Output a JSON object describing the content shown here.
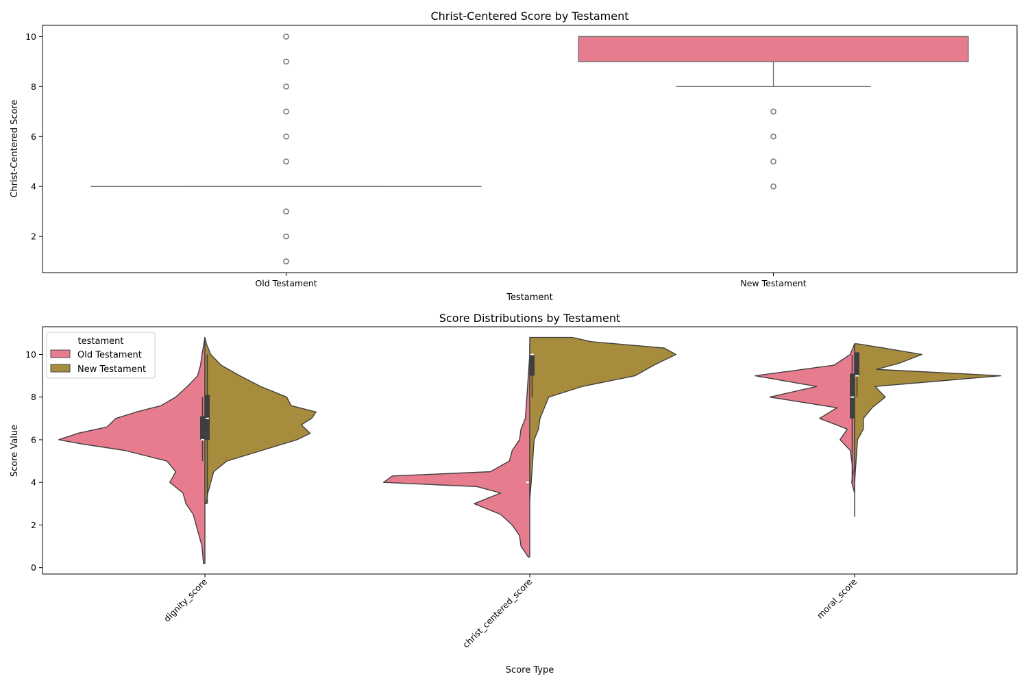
{
  "chart_data": [
    {
      "type": "box",
      "title": "Christ-Centered Score by Testament",
      "xlabel": "Testament",
      "ylabel": "Christ-Centered Score",
      "ylim": [
        0.55,
        10.45
      ],
      "yticks": [
        2,
        4,
        6,
        8,
        10
      ],
      "categories": [
        "Old Testament",
        "New Testament"
      ],
      "color": "#e67c8d",
      "boxes": [
        {
          "category": "Old Testament",
          "q1": 4,
          "median": 4,
          "q3": 4,
          "whisker_low": 4,
          "whisker_high": 4,
          "outliers": [
            1,
            2,
            3,
            5,
            6,
            7,
            8,
            9,
            10
          ]
        },
        {
          "category": "New Testament",
          "q1": 9,
          "median": 10,
          "q3": 10,
          "whisker_low": 8,
          "whisker_high": 10,
          "outliers": [
            4,
            5,
            6,
            7
          ]
        }
      ]
    },
    {
      "type": "violin",
      "title": "Score Distributions by Testament",
      "xlabel": "Score Type",
      "ylabel": "Score Value",
      "ylim": [
        -0.3,
        11.3
      ],
      "yticks": [
        0,
        2,
        4,
        6,
        8,
        10
      ],
      "categories": [
        "dignity_score",
        "christ_centered_score",
        "moral_score"
      ],
      "legend": {
        "title": "testament",
        "position": "upper-left"
      },
      "series": [
        {
          "name": "Old Testament",
          "color": "#e67c8d",
          "side": "left"
        },
        {
          "name": "New Testament",
          "color": "#a88c3d",
          "side": "right"
        }
      ],
      "violins": [
        {
          "category": "dignity_score",
          "old": {
            "range": [
              0.2,
              10.8
            ],
            "density": [
              [
                0.2,
                0.01
              ],
              [
                1,
                0.02
              ],
              [
                1.5,
                0.04
              ],
              [
                2,
                0.06
              ],
              [
                2.5,
                0.08
              ],
              [
                3,
                0.13
              ],
              [
                3.5,
                0.15
              ],
              [
                4,
                0.24
              ],
              [
                4.5,
                0.2
              ],
              [
                5,
                0.26
              ],
              [
                5.5,
                0.55
              ],
              [
                5.8,
                0.84
              ],
              [
                6,
                1.0
              ],
              [
                6.3,
                0.87
              ],
              [
                6.6,
                0.67
              ],
              [
                7,
                0.61
              ],
              [
                7.3,
                0.47
              ],
              [
                7.6,
                0.3
              ],
              [
                8,
                0.2
              ],
              [
                8.5,
                0.12
              ],
              [
                9,
                0.05
              ],
              [
                9.5,
                0.03
              ],
              [
                10,
                0.02
              ],
              [
                10.8,
                0.0
              ]
            ],
            "box": [
              6,
              6,
              7.1
            ],
            "whisker": [
              5,
              8
            ]
          },
          "new": {
            "range": [
              3,
              10.8
            ],
            "density": [
              [
                3,
                0.01
              ],
              [
                3.5,
                0.02
              ],
              [
                4,
                0.04
              ],
              [
                4.5,
                0.06
              ],
              [
                5,
                0.15
              ],
              [
                5.5,
                0.39
              ],
              [
                6,
                0.63
              ],
              [
                6.3,
                0.72
              ],
              [
                6.7,
                0.66
              ],
              [
                7,
                0.73
              ],
              [
                7.3,
                0.76
              ],
              [
                7.6,
                0.59
              ],
              [
                8,
                0.56
              ],
              [
                8.5,
                0.38
              ],
              [
                9,
                0.24
              ],
              [
                9.5,
                0.11
              ],
              [
                10,
                0.04
              ],
              [
                10.5,
                0.01
              ],
              [
                10.8,
                0.0
              ]
            ],
            "box": [
              6,
              7,
              8.1
            ],
            "whisker": [
              3,
              10
            ]
          }
        },
        {
          "category": "christ_centered_score",
          "old": {
            "range": [
              0.5,
              10.5
            ],
            "density": [
              [
                0.5,
                0.01
              ],
              [
                1,
                0.06
              ],
              [
                1.5,
                0.07
              ],
              [
                2,
                0.12
              ],
              [
                2.5,
                0.2
              ],
              [
                3,
                0.38
              ],
              [
                3.5,
                0.2
              ],
              [
                3.8,
                0.36
              ],
              [
                4,
                1.0
              ],
              [
                4.3,
                0.94
              ],
              [
                4.5,
                0.27
              ],
              [
                5,
                0.14
              ],
              [
                5.5,
                0.12
              ],
              [
                6,
                0.07
              ],
              [
                6.5,
                0.06
              ],
              [
                7,
                0.03
              ],
              [
                8,
                0.02
              ],
              [
                9,
                0.01
              ],
              [
                10,
                0.0
              ],
              [
                10.5,
                0.0
              ]
            ],
            "box": [
              4,
              4,
              4
            ],
            "whisker": [
              4,
              4
            ]
          },
          "new": {
            "range": [
              3.2,
              10.8
            ],
            "density": [
              [
                3.2,
                0.0
              ],
              [
                4,
                0.01
              ],
              [
                5,
                0.02
              ],
              [
                6,
                0.03
              ],
              [
                6.5,
                0.06
              ],
              [
                7,
                0.07
              ],
              [
                7.5,
                0.1
              ],
              [
                8,
                0.13
              ],
              [
                8.5,
                0.36
              ],
              [
                9,
                0.72
              ],
              [
                9.5,
                0.85
              ],
              [
                10,
                1.0
              ],
              [
                10.3,
                0.92
              ],
              [
                10.6,
                0.42
              ],
              [
                10.8,
                0.29
              ]
            ],
            "box": [
              9,
              10,
              10
            ],
            "whisker": [
              8,
              10
            ]
          }
        },
        {
          "category": "moral_score",
          "old": {
            "range": [
              3.5,
              10.5
            ],
            "density": [
              [
                3.5,
                0.0
              ],
              [
                4,
                0.02
              ],
              [
                4.5,
                0.01
              ],
              [
                5,
                0.02
              ],
              [
                5.5,
                0.03
              ],
              [
                6,
                0.1
              ],
              [
                6.5,
                0.05
              ],
              [
                7,
                0.24
              ],
              [
                7.5,
                0.12
              ],
              [
                8,
                0.58
              ],
              [
                8.5,
                0.26
              ],
              [
                9,
                0.68
              ],
              [
                9.5,
                0.14
              ],
              [
                10,
                0.03
              ],
              [
                10.5,
                0.0
              ]
            ],
            "box": [
              7,
              8,
              9.1
            ],
            "whisker": [
              4,
              10
            ]
          },
          "new": {
            "range": [
              2.4,
              10.5
            ],
            "density": [
              [
                2.4,
                0.0
              ],
              [
                3,
                0.0
              ],
              [
                4,
                0.0
              ],
              [
                5,
                0.01
              ],
              [
                6,
                0.02
              ],
              [
                6.5,
                0.06
              ],
              [
                7,
                0.06
              ],
              [
                7.5,
                0.12
              ],
              [
                8,
                0.21
              ],
              [
                8.5,
                0.14
              ],
              [
                9,
                1.0
              ],
              [
                9.3,
                0.15
              ],
              [
                9.6,
                0.31
              ],
              [
                10,
                0.46
              ],
              [
                10.3,
                0.2
              ],
              [
                10.5,
                0.02
              ]
            ],
            "box": [
              9,
              9,
              10.1
            ],
            "whisker": [
              8,
              10
            ]
          }
        }
      ]
    }
  ]
}
